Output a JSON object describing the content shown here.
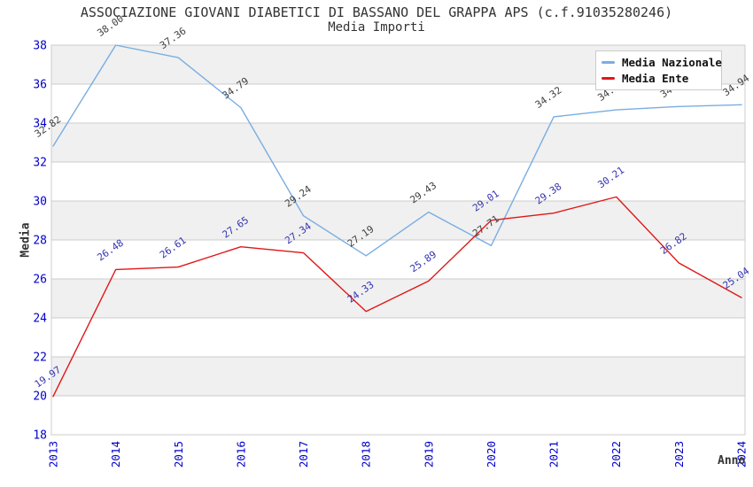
{
  "colors": {
    "grid": "#cccccc",
    "band": "#f0f0f0",
    "axis_tick": "#0000cc",
    "title_text": "#333333",
    "legend_text": "#111111",
    "series_nazionale": "#79ade2",
    "series_ente": "#e01717"
  },
  "chart_data": {
    "type": "line",
    "title": "ASSOCIAZIONE GIOVANI DIABETICI DI BASSANO DEL GRAPPA APS (c.f.91035280246)",
    "subtitle": "Media Importi",
    "xlabel": "Anno",
    "ylabel": "Media",
    "x": [
      2013,
      2014,
      2015,
      2016,
      2017,
      2018,
      2019,
      2020,
      2021,
      2022,
      2023,
      2024
    ],
    "ylim": [
      18,
      38
    ],
    "ytick_step": 2,
    "grid": "horizontal-bands",
    "band_color": "#f0f0f0",
    "legend_position": "top-right",
    "series": [
      {
        "name": "Media Nazionale",
        "color": "#79ade2",
        "label_color": "#404040",
        "values": [
          32.82,
          38.0,
          37.36,
          34.79,
          29.24,
          27.19,
          29.43,
          27.71,
          34.32,
          34.68,
          34.85,
          34.94
        ]
      },
      {
        "name": "Media Ente",
        "color": "#e01717",
        "label_color": "#3434b0",
        "values": [
          19.97,
          26.48,
          26.61,
          27.65,
          27.34,
          24.33,
          25.89,
          29.01,
          29.38,
          30.21,
          26.82,
          25.04
        ]
      }
    ]
  }
}
